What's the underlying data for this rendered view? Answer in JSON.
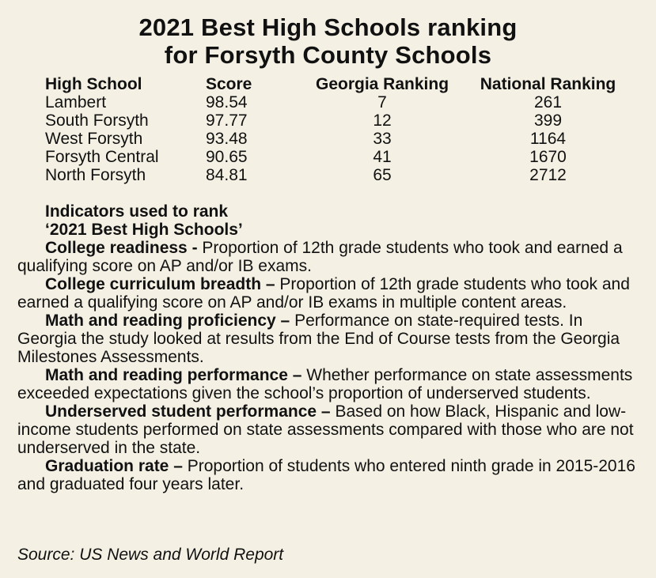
{
  "title": {
    "line1": "2021 Best High Schools ranking",
    "line2": "for Forsyth County Schools"
  },
  "table": {
    "headers": [
      "High School",
      "Score",
      "Georgia Ranking",
      "National Ranking"
    ],
    "rows": [
      [
        "Lambert",
        "98.54",
        "7",
        "261"
      ],
      [
        "South Forsyth",
        "97.77",
        "12",
        "399"
      ],
      [
        "West Forsyth",
        "93.48",
        "33",
        "1164"
      ],
      [
        "Forsyth Central",
        "90.65",
        "41",
        "1670"
      ],
      [
        "North Forsyth",
        "84.81",
        "65",
        "2712"
      ]
    ]
  },
  "indicators": {
    "heading_line1": "Indicators used to rank",
    "heading_line2": "‘2021 Best High Schools’",
    "items": [
      {
        "term": "College readiness -",
        "description": "Proportion of 12th grade students who took and earned a qualifying score on AP and/or IB exams."
      },
      {
        "term": "College curriculum breadth –",
        "description": "Proportion of 12th grade students who took and earned a qualifying score on AP and/or IB exams in multiple content areas."
      },
      {
        "term": "Math and reading proficiency –",
        "description": "Performance on state-required tests. In Georgia the study looked at results from the End of Course tests from the Georgia Milestones Assessments."
      },
      {
        "term": "Math and reading performance –",
        "description": "Whether performance on state assessments exceeded expectations given the school’s proportion of underserved students."
      },
      {
        "term": "Underserved student performance –",
        "description": "Based on how Black, Hispanic and low-income students performed on state assessments compared with those who are not underserved in the state."
      },
      {
        "term": "Graduation rate –",
        "description": "Proportion of students who entered ninth grade in 2015-2016 and graduated four years later."
      }
    ]
  },
  "source": "Source: US News and World Report",
  "colors": {
    "background": "#f4f1e4",
    "text": "#111111"
  }
}
